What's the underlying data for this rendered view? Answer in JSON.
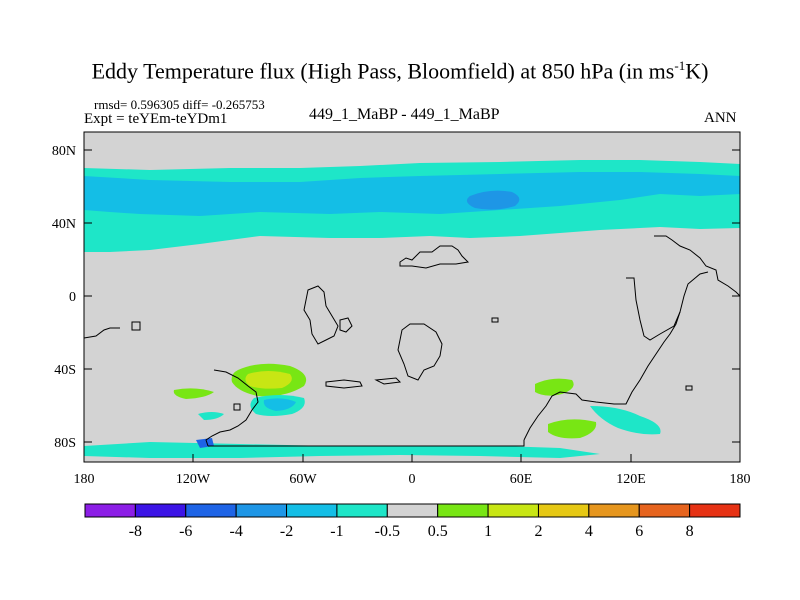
{
  "title": {
    "main": "Eddy Temperature flux (High Pass, Bloomfield) at 850 hPa (in ms",
    "sup": "-1",
    "tail": "K)"
  },
  "stats": "rmsd= 0.596305 diff= -0.265753",
  "expt": "Expt = teYEm-teYDm1",
  "case_name": "449_1_MaBP - 449_1_MaBP",
  "season": "ANN",
  "map": {
    "lat_ticks": [
      "80N",
      "40N",
      "0",
      "40S",
      "80S"
    ],
    "lon_ticks": [
      "180",
      "120W",
      "60W",
      "0",
      "60E",
      "120E",
      "180"
    ],
    "background_color": "#d3d3d3",
    "coastline_color": "#000000"
  },
  "colorbar": {
    "labels": [
      "-8",
      "-6",
      "-4",
      "-2",
      "-1",
      "-0.5",
      "0.5",
      "1",
      "2",
      "4",
      "6",
      "8"
    ],
    "colors": [
      "#8c1ee6",
      "#3c14e6",
      "#1e64e6",
      "#1e96e6",
      "#14bee6",
      "#1ee6c8",
      "#d3d3d3",
      "#78e614",
      "#c8e614",
      "#e6c814",
      "#e6961e",
      "#e6641e",
      "#e63214"
    ]
  }
}
